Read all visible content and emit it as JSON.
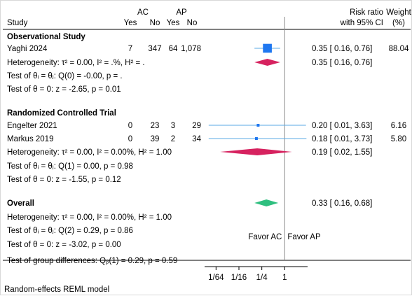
{
  "chart_data": {
    "type": "forest",
    "header": {
      "study": "Study",
      "group_a": "AC",
      "group_b": "AP",
      "yes": "Yes",
      "no": "No",
      "effect_line1": "Risk ratio",
      "effect_line2": "with 95% CI",
      "weight_line1": "Weight",
      "weight_line2": "(%)"
    },
    "subgroups": [
      {
        "title": "Observational Study",
        "studies": [
          {
            "name": "Yaghi 2024",
            "a_yes": "7",
            "a_no": "347",
            "b_yes": "64",
            "b_no": "1,078",
            "rr": 0.35,
            "lo": 0.16,
            "hi": 0.76,
            "ci_text": "0.35 [ 0.16,  0.76]",
            "weight": "88.04"
          }
        ],
        "pooled": {
          "label": "Heterogeneity: τ² = 0.00, I² = .%, H² = .",
          "rr": 0.35,
          "lo": 0.16,
          "hi": 0.76,
          "ci_text": "0.35 [ 0.16,  0.76]"
        },
        "test_het": "Test of θᵢ = θⱼ: Q(0) = -0.00, p = .",
        "test_effect": "Test of θ = 0: z = -2.65, p = 0.01"
      },
      {
        "title": "Randomized Controlled Trial",
        "studies": [
          {
            "name": "Engelter 2021",
            "a_yes": "0",
            "a_no": "23",
            "b_yes": "3",
            "b_no": "29",
            "rr": 0.2,
            "lo": 0.01,
            "hi": 3.63,
            "ci_text": "0.20 [ 0.01,  3.63]",
            "weight": "6.16"
          },
          {
            "name": "Markus 2019",
            "a_yes": "0",
            "a_no": "39",
            "b_yes": "2",
            "b_no": "34",
            "rr": 0.18,
            "lo": 0.01,
            "hi": 3.73,
            "ci_text": "0.18 [ 0.01,  3.73]",
            "weight": "5.80"
          }
        ],
        "pooled": {
          "label": "Heterogeneity: τ² = 0.00, I² = 0.00%, H² = 1.00",
          "rr": 0.19,
          "lo": 0.02,
          "hi": 1.55,
          "ci_text": "0.19 [ 0.02,  1.55]"
        },
        "test_het": "Test of θᵢ = θⱼ: Q(1) = 0.00, p = 0.98",
        "test_effect": "Test of θ = 0: z = -1.55, p = 0.12"
      }
    ],
    "overall": {
      "title": "Overall",
      "label": "Heterogeneity: τ² = 0.00, I² = 0.00%, H² = 1.00",
      "rr": 0.33,
      "lo": 0.16,
      "hi": 0.68,
      "ci_text": "0.33 [ 0.16,  0.68]",
      "test_het": "Test of θᵢ = θⱼ: Q(2) = 0.29, p = 0.86",
      "test_effect": "Test of θ = 0: z = -3.02, p = 0.00"
    },
    "group_test": "Test of group differences: Qᵦ(1) = 0.29, p = 0.59",
    "favor_left": "Favor AC",
    "favor_right": "Favor AP",
    "x_axis": {
      "scale": "log",
      "ticks": [
        0.015625,
        0.0625,
        0.25,
        1
      ],
      "tick_labels": [
        "1/64",
        "1/16",
        "1/4",
        "1"
      ],
      "range": [
        0.0078125,
        4
      ]
    },
    "footnote": "Random-effects REML model",
    "colors": {
      "study_marker": "#1f77f0",
      "ci_line": "#5aa8e6",
      "subgroup_diamond": "#d6225f",
      "overall_diamond": "#2fbf7f",
      "ref_line": "#8c8c8c"
    }
  }
}
